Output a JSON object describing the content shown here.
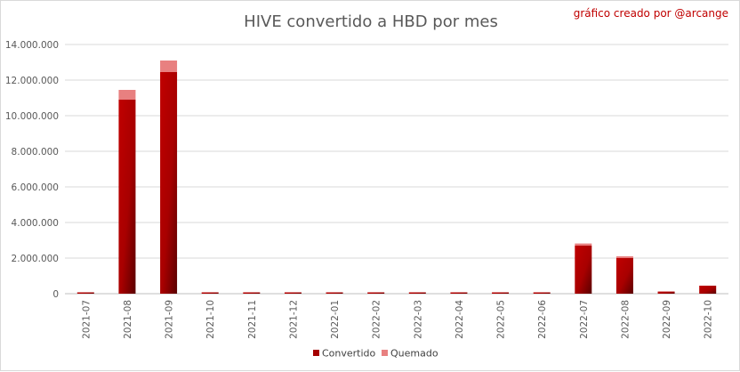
{
  "chart_data": {
    "type": "bar",
    "stacked": true,
    "title": "HIVE convertido a HBD por mes",
    "annotation": "gráfico creado por @arcange",
    "categories": [
      "2021-07",
      "2021-08",
      "2021-09",
      "2021-10",
      "2021-11",
      "2021-12",
      "2022-01",
      "2022-02",
      "2022-03",
      "2022-04",
      "2022-05",
      "2022-06",
      "2022-07",
      "2022-08",
      "2022-09",
      "2022-10"
    ],
    "series": [
      {
        "name": "Convertido",
        "color": "#a50000",
        "values": [
          60000,
          10900000,
          12450000,
          0,
          0,
          0,
          0,
          0,
          0,
          0,
          60000,
          0,
          2700000,
          2000000,
          120000,
          450000
        ]
      },
      {
        "name": "Quemado",
        "color": "#e88080",
        "values": [
          0,
          550000,
          650000,
          0,
          0,
          0,
          0,
          0,
          0,
          0,
          0,
          0,
          120000,
          100000,
          10000,
          0
        ]
      }
    ],
    "ylim": [
      0,
      14000000
    ],
    "yticks": [
      0,
      2000000,
      4000000,
      6000000,
      8000000,
      10000000,
      12000000,
      14000000
    ],
    "ytick_labels": [
      "0",
      "2.000.000",
      "4.000.000",
      "6.000.000",
      "8.000.000",
      "10.000.000",
      "12.000.000",
      "14.000.000"
    ],
    "xlabel": "",
    "ylabel": "",
    "grid": true,
    "legend": "bottom"
  }
}
